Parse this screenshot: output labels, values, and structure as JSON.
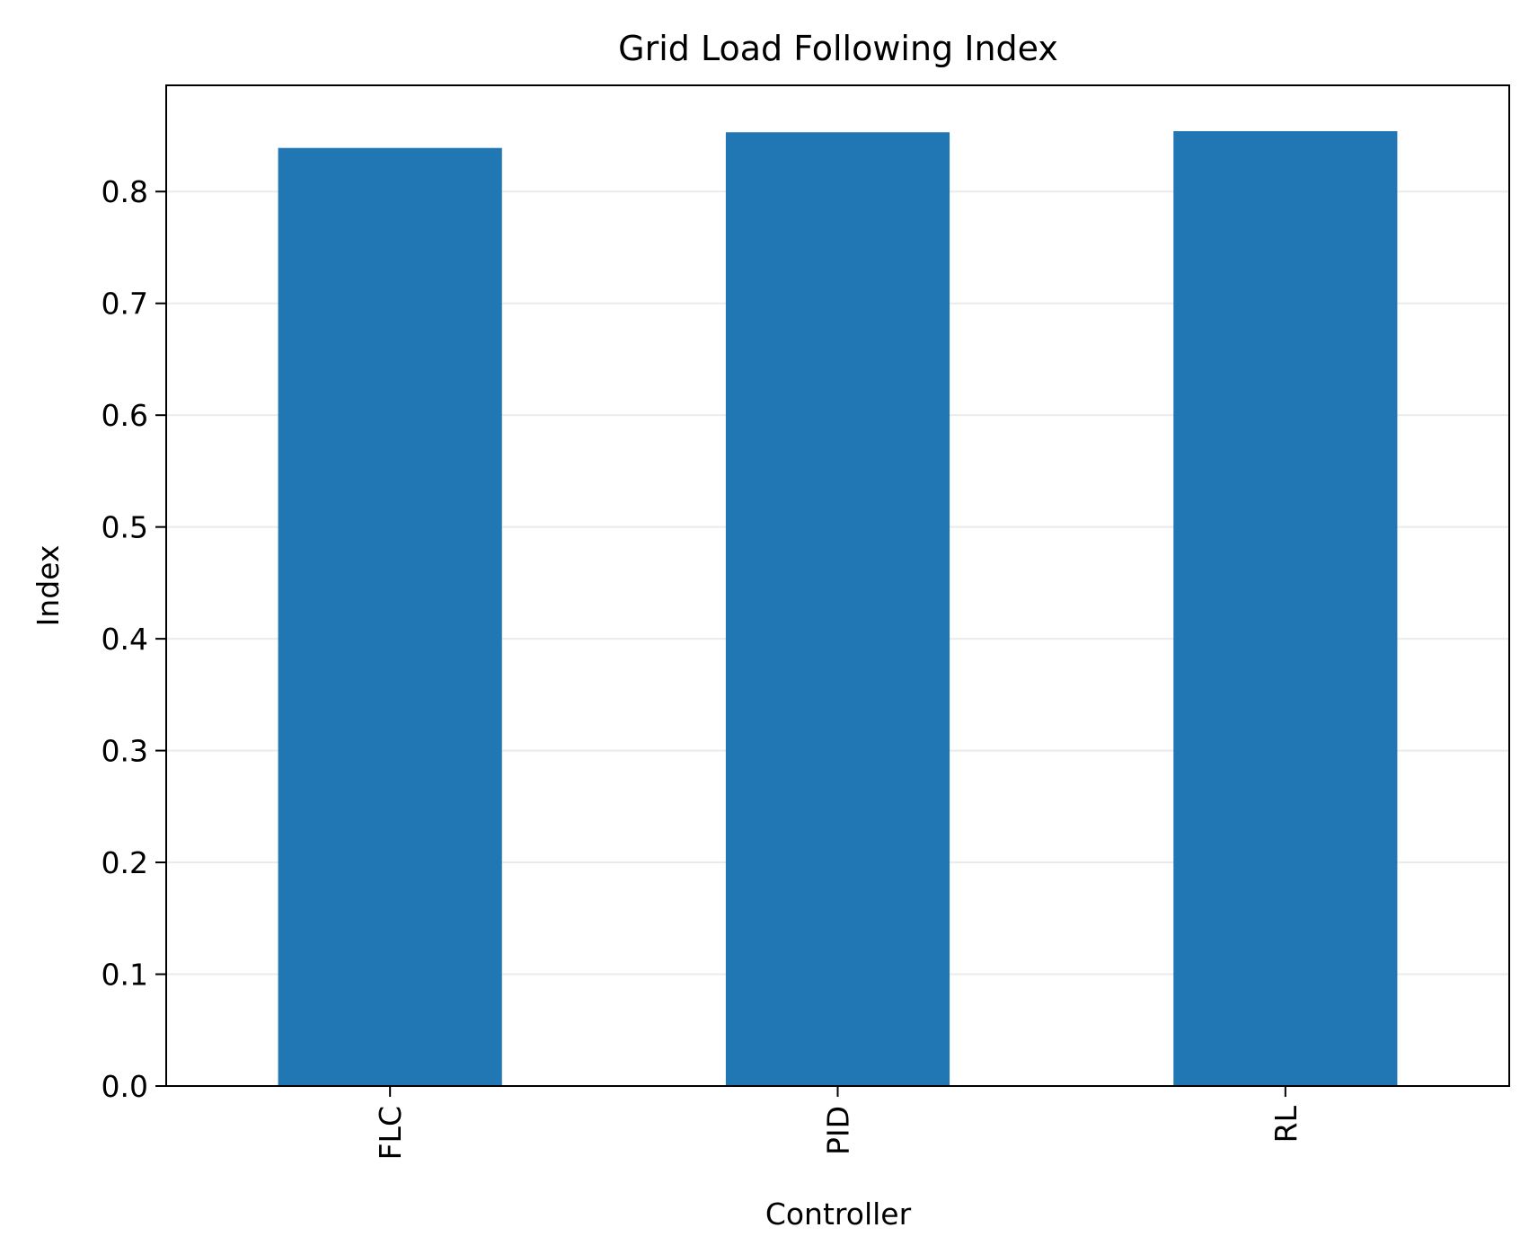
{
  "chart_data": {
    "type": "bar",
    "title": "Grid Load Following Index",
    "xlabel": "Controller",
    "ylabel": "Index",
    "categories": [
      "FLC",
      "PID",
      "RL"
    ],
    "values": [
      0.839,
      0.853,
      0.854
    ],
    "ylim": [
      0,
      0.895
    ],
    "yticks": [
      "0.0",
      "0.1",
      "0.2",
      "0.3",
      "0.4",
      "0.5",
      "0.6",
      "0.7",
      "0.8"
    ],
    "grid": "y-axis, light",
    "bar_color": "#2077b4",
    "grid_color": "#ebebeb"
  }
}
